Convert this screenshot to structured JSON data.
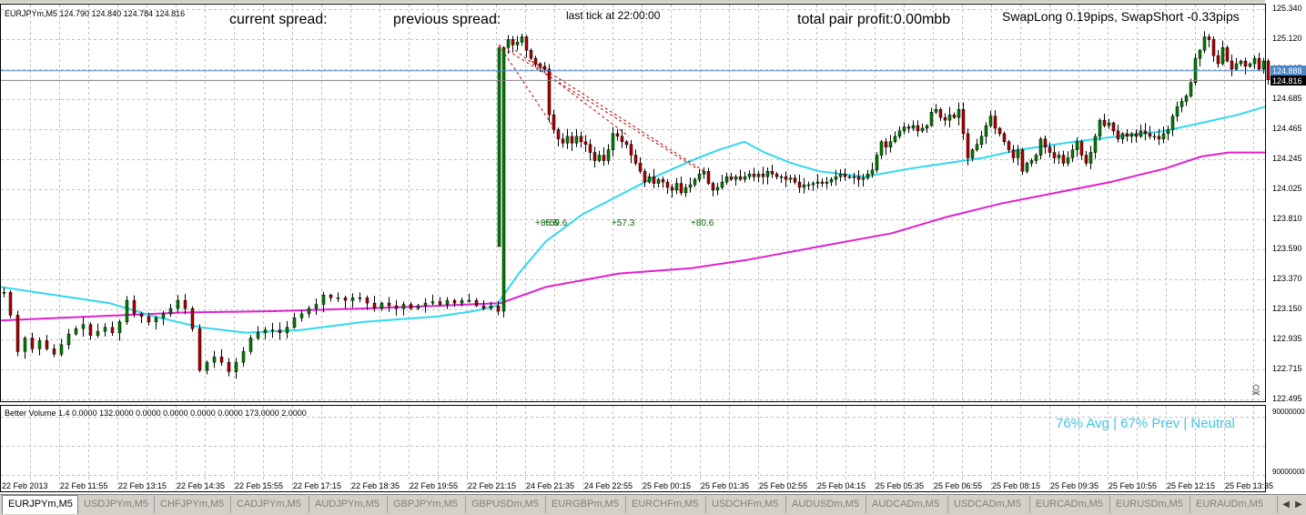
{
  "colors": {
    "background": "#ffffff",
    "grid": "#c0c0c0",
    "bull_candle": "#008000",
    "bear_candle": "#b00000",
    "ma_fast": "#30d8f0",
    "ma_slow": "#e020d0",
    "bid_line": "#808080",
    "ask_line": "#4a86c8",
    "trade_line": "#c00000",
    "volume_label": "#3cc4e8"
  },
  "chart": {
    "header": "EURJPYm,M5  124.790 124.840 124.784 124.816",
    "current_spread": "current spread:",
    "previous_spread": "previous spread:",
    "last_tick": "last tick at 22:00:00",
    "total_profit": "total pair profit:0.00mbb",
    "swap": "SwapLong 0.19pips, SwapShort -0.33pips",
    "ask_price": "124.888",
    "bid_price": "124.816"
  },
  "price_axis": [
    "125.340",
    "125.120",
    "124.905",
    "124.685",
    "124.465",
    "124.245",
    "124.025",
    "123.810",
    "123.590",
    "123.370",
    "123.150",
    "122.935",
    "122.715",
    "122.495"
  ],
  "trade_labels": [
    "+85.6",
    "+59.6",
    "+57.3",
    "+80.6"
  ],
  "volume": {
    "header": "Better Volume 1.4 0.0000 132.0000 0.0000 0.0000 0.0000 0.0000 173.0000 2.0000",
    "status": "76% Avg | 67% Prev | Neutral",
    "axis_top": "90000000",
    "axis_bottom": "90000000"
  },
  "time_axis": [
    "22 Feb 2013",
    "22 Feb 11:55",
    "22 Feb 13:15",
    "22 Feb 14:35",
    "22 Feb 15:55",
    "22 Feb 17:15",
    "22 Feb 18:35",
    "22 Feb 19:55",
    "22 Feb 21:15",
    "24 Feb 21:35",
    "24 Feb 22:55",
    "25 Feb 00:15",
    "25 Feb 01:35",
    "25 Feb 02:55",
    "25 Feb 04:15",
    "25 Feb 05:35",
    "25 Feb 06:55",
    "25 Feb 08:15",
    "25 Feb 09:35",
    "25 Feb 10:55",
    "25 Feb 12:15",
    "25 Feb 13:35"
  ],
  "tabs": [
    "EURJPYm,M5",
    "USDJPYm,M5",
    "CHFJPYm,M5",
    "CADJPYm,M5",
    "AUDJPYm,M5",
    "GBPJPYm,M5",
    "GBPUSDm,M5",
    "EURGBPm,M5",
    "EURCHFm,M5",
    "USDCHFm,M5",
    "AUDUSDm,M5",
    "AUDCADm,M5",
    "USDCADm,M5",
    "EURCADm,M5",
    "EURUSDm,M5",
    "EURAUDm,M5"
  ],
  "active_tab": "EURJPYm,M5",
  "icons": {
    "tab_left": "triangle-left",
    "tab_right": "triangle-right",
    "stop_marker": "skull-crossbones"
  },
  "chart_data": {
    "type": "candlestick",
    "ylim": [
      122.43,
      125.38
    ],
    "grid": true,
    "ask": 124.888,
    "bid": 124.816,
    "close_start": 123.24,
    "close_path": [
      [
        0,
        123.24
      ],
      [
        7,
        123.07
      ],
      [
        15,
        122.8
      ],
      [
        23,
        122.9
      ],
      [
        31,
        122.82
      ],
      [
        39,
        122.88
      ],
      [
        47,
        122.82
      ],
      [
        55,
        122.78
      ],
      [
        63,
        122.85
      ],
      [
        71,
        122.93
      ],
      [
        79,
        122.97
      ],
      [
        87,
        123.0
      ],
      [
        95,
        122.92
      ],
      [
        103,
        122.95
      ],
      [
        111,
        122.98
      ],
      [
        119,
        122.94
      ],
      [
        127,
        123.02
      ],
      [
        135,
        123.18
      ],
      [
        143,
        123.08
      ],
      [
        151,
        123.06
      ],
      [
        159,
        123.02
      ],
      [
        167,
        123.05
      ],
      [
        175,
        123.08
      ],
      [
        183,
        123.12
      ],
      [
        191,
        123.18
      ],
      [
        199,
        123.12
      ],
      [
        207,
        122.97
      ],
      [
        215,
        122.66
      ],
      [
        223,
        122.72
      ],
      [
        231,
        122.76
      ],
      [
        239,
        122.72
      ],
      [
        247,
        122.65
      ],
      [
        255,
        122.72
      ],
      [
        263,
        122.8
      ],
      [
        271,
        122.9
      ],
      [
        279,
        122.94
      ],
      [
        287,
        122.96
      ],
      [
        295,
        122.96
      ],
      [
        303,
        122.94
      ],
      [
        311,
        122.98
      ],
      [
        319,
        123.05
      ],
      [
        327,
        123.08
      ],
      [
        335,
        123.12
      ],
      [
        343,
        123.15
      ],
      [
        351,
        123.22
      ],
      [
        359,
        123.2
      ],
      [
        367,
        123.2
      ],
      [
        375,
        123.18
      ],
      [
        383,
        123.2
      ],
      [
        391,
        123.2
      ],
      [
        399,
        123.16
      ],
      [
        407,
        123.12
      ],
      [
        415,
        123.16
      ],
      [
        423,
        123.14
      ],
      [
        431,
        123.12
      ],
      [
        439,
        123.15
      ],
      [
        447,
        123.12
      ],
      [
        455,
        123.14
      ],
      [
        463,
        123.16
      ],
      [
        471,
        123.17
      ],
      [
        479,
        123.15
      ],
      [
        487,
        123.18
      ],
      [
        495,
        123.16
      ],
      [
        503,
        123.18
      ],
      [
        511,
        123.18
      ],
      [
        519,
        123.14
      ],
      [
        527,
        123.12
      ],
      [
        535,
        123.14
      ],
      [
        543,
        123.1
      ],
      [
        549,
        125.06
      ],
      [
        554,
        125.12
      ],
      [
        559,
        125.08
      ],
      [
        564,
        125.1
      ],
      [
        569,
        125.14
      ],
      [
        574,
        125.04
      ],
      [
        579,
        124.98
      ],
      [
        584,
        124.94
      ],
      [
        589,
        124.92
      ],
      [
        594,
        124.9
      ],
      [
        599,
        124.56
      ],
      [
        604,
        124.45
      ],
      [
        609,
        124.38
      ],
      [
        614,
        124.35
      ],
      [
        619,
        124.4
      ],
      [
        624,
        124.35
      ],
      [
        629,
        124.4
      ],
      [
        634,
        124.36
      ],
      [
        639,
        124.34
      ],
      [
        644,
        124.28
      ],
      [
        649,
        124.22
      ],
      [
        654,
        124.26
      ],
      [
        659,
        124.22
      ],
      [
        664,
        124.3
      ],
      [
        669,
        124.42
      ],
      [
        674,
        124.4
      ],
      [
        679,
        124.36
      ],
      [
        684,
        124.34
      ],
      [
        689,
        124.26
      ],
      [
        694,
        124.2
      ],
      [
        699,
        124.14
      ],
      [
        704,
        124.06
      ],
      [
        709,
        124.1
      ],
      [
        714,
        124.05
      ],
      [
        719,
        124.08
      ],
      [
        724,
        124.06
      ],
      [
        729,
        124.02
      ],
      [
        734,
        124.0
      ],
      [
        739,
        124.05
      ],
      [
        744,
        123.98
      ],
      [
        749,
        124.02
      ],
      [
        754,
        124.04
      ],
      [
        759,
        124.08
      ],
      [
        764,
        124.12
      ],
      [
        769,
        124.14
      ],
      [
        774,
        124.05
      ],
      [
        779,
        124.0
      ],
      [
        784,
        124.02
      ],
      [
        789,
        124.06
      ],
      [
        794,
        124.1
      ],
      [
        799,
        124.08
      ],
      [
        804,
        124.1
      ],
      [
        809,
        124.08
      ],
      [
        814,
        124.1
      ],
      [
        819,
        124.12
      ],
      [
        824,
        124.1
      ],
      [
        829,
        124.12
      ],
      [
        834,
        124.1
      ],
      [
        839,
        124.14
      ],
      [
        844,
        124.12
      ],
      [
        849,
        124.1
      ],
      [
        854,
        124.1
      ],
      [
        859,
        124.08
      ],
      [
        864,
        124.09
      ],
      [
        869,
        124.06
      ],
      [
        874,
        124.02
      ],
      [
        879,
        124.04
      ],
      [
        884,
        124.04
      ],
      [
        889,
        124.05
      ],
      [
        894,
        124.06
      ],
      [
        899,
        124.05
      ],
      [
        904,
        124.06
      ],
      [
        909,
        124.08
      ],
      [
        914,
        124.1
      ],
      [
        919,
        124.12
      ],
      [
        924,
        124.1
      ],
      [
        929,
        124.1
      ],
      [
        934,
        124.1
      ],
      [
        939,
        124.08
      ],
      [
        944,
        124.09
      ],
      [
        949,
        124.12
      ],
      [
        954,
        124.15
      ],
      [
        959,
        124.26
      ],
      [
        964,
        124.36
      ],
      [
        969,
        124.32
      ],
      [
        974,
        124.36
      ],
      [
        979,
        124.4
      ],
      [
        984,
        124.44
      ],
      [
        989,
        124.47
      ],
      [
        994,
        124.46
      ],
      [
        999,
        124.48
      ],
      [
        1004,
        124.44
      ],
      [
        1009,
        124.46
      ],
      [
        1014,
        124.48
      ],
      [
        1019,
        124.58
      ],
      [
        1024,
        124.6
      ],
      [
        1029,
        124.54
      ],
      [
        1034,
        124.52
      ],
      [
        1039,
        124.56
      ],
      [
        1044,
        124.54
      ],
      [
        1049,
        124.6
      ],
      [
        1054,
        124.42
      ],
      [
        1059,
        124.24
      ],
      [
        1064,
        124.3
      ],
      [
        1069,
        124.34
      ],
      [
        1074,
        124.4
      ],
      [
        1079,
        124.48
      ],
      [
        1084,
        124.55
      ],
      [
        1089,
        124.46
      ],
      [
        1094,
        124.42
      ],
      [
        1099,
        124.36
      ],
      [
        1104,
        124.3
      ],
      [
        1109,
        124.24
      ],
      [
        1114,
        124.3
      ],
      [
        1119,
        124.14
      ],
      [
        1124,
        124.2
      ],
      [
        1129,
        124.22
      ],
      [
        1134,
        124.26
      ],
      [
        1139,
        124.38
      ],
      [
        1144,
        124.32
      ],
      [
        1149,
        124.28
      ],
      [
        1154,
        124.24
      ],
      [
        1159,
        124.26
      ],
      [
        1164,
        124.2
      ],
      [
        1169,
        124.24
      ],
      [
        1174,
        124.3
      ],
      [
        1179,
        124.36
      ],
      [
        1184,
        124.26
      ],
      [
        1189,
        124.2
      ],
      [
        1194,
        124.28
      ],
      [
        1199,
        124.4
      ],
      [
        1204,
        124.52
      ],
      [
        1209,
        124.48
      ],
      [
        1214,
        124.5
      ],
      [
        1219,
        124.44
      ],
      [
        1224,
        124.38
      ],
      [
        1229,
        124.42
      ],
      [
        1234,
        124.4
      ],
      [
        1239,
        124.42
      ],
      [
        1244,
        124.4
      ],
      [
        1249,
        124.44
      ],
      [
        1254,
        124.42
      ],
      [
        1259,
        124.4
      ],
      [
        1264,
        124.4
      ],
      [
        1269,
        124.38
      ],
      [
        1274,
        124.42
      ],
      [
        1279,
        124.45
      ],
      [
        1284,
        124.55
      ],
      [
        1289,
        124.62
      ],
      [
        1294,
        124.66
      ],
      [
        1299,
        124.7
      ],
      [
        1304,
        124.8
      ],
      [
        1309,
        124.98
      ],
      [
        1314,
        125.04
      ],
      [
        1319,
        125.14
      ],
      [
        1324,
        125.12
      ],
      [
        1329,
        125.0
      ],
      [
        1334,
        124.94
      ],
      [
        1339,
        125.06
      ],
      [
        1344,
        124.96
      ],
      [
        1349,
        124.9
      ],
      [
        1354,
        124.94
      ],
      [
        1359,
        124.96
      ],
      [
        1364,
        124.92
      ],
      [
        1369,
        124.94
      ],
      [
        1374,
        124.98
      ],
      [
        1379,
        124.9
      ],
      [
        1384,
        124.96
      ],
      [
        1389,
        124.82
      ]
    ],
    "ma_fast": [
      [
        0,
        123.28
      ],
      [
        60,
        123.22
      ],
      [
        120,
        123.16
      ],
      [
        170,
        123.06
      ],
      [
        220,
        122.98
      ],
      [
        270,
        122.94
      ],
      [
        330,
        122.96
      ],
      [
        400,
        123.02
      ],
      [
        480,
        123.06
      ],
      [
        520,
        123.1
      ],
      [
        545,
        123.14
      ],
      [
        570,
        123.38
      ],
      [
        600,
        123.62
      ],
      [
        640,
        123.82
      ],
      [
        680,
        123.96
      ],
      [
        720,
        124.1
      ],
      [
        760,
        124.22
      ],
      [
        790,
        124.3
      ],
      [
        818,
        124.36
      ],
      [
        840,
        124.28
      ],
      [
        870,
        124.2
      ],
      [
        900,
        124.14
      ],
      [
        950,
        124.1
      ],
      [
        1000,
        124.16
      ],
      [
        1040,
        124.2
      ],
      [
        1080,
        124.24
      ],
      [
        1120,
        124.3
      ],
      [
        1180,
        124.36
      ],
      [
        1230,
        124.4
      ],
      [
        1280,
        124.44
      ],
      [
        1320,
        124.5
      ],
      [
        1360,
        124.56
      ],
      [
        1390,
        124.62
      ]
    ],
    "ma_slow": [
      [
        0,
        123.03
      ],
      [
        100,
        123.06
      ],
      [
        200,
        123.09
      ],
      [
        300,
        123.1
      ],
      [
        400,
        123.12
      ],
      [
        480,
        123.14
      ],
      [
        550,
        123.16
      ],
      [
        600,
        123.28
      ],
      [
        680,
        123.38
      ],
      [
        760,
        123.42
      ],
      [
        820,
        123.48
      ],
      [
        900,
        123.58
      ],
      [
        980,
        123.68
      ],
      [
        1040,
        123.8
      ],
      [
        1100,
        123.9
      ],
      [
        1160,
        123.98
      ],
      [
        1220,
        124.06
      ],
      [
        1280,
        124.16
      ],
      [
        1320,
        124.25
      ],
      [
        1350,
        124.28
      ],
      [
        1390,
        124.28
      ]
    ],
    "trades": [
      [
        [
          548,
          125.08
        ],
        [
          609,
          124.46
        ]
      ],
      [
        [
          548,
          125.08
        ],
        [
          766,
          124.16
        ]
      ],
      [
        [
          566,
          125.04
        ],
        [
          691,
          124.4
        ]
      ],
      [
        [
          584,
          124.96
        ],
        [
          774,
          124.14
        ]
      ]
    ]
  }
}
